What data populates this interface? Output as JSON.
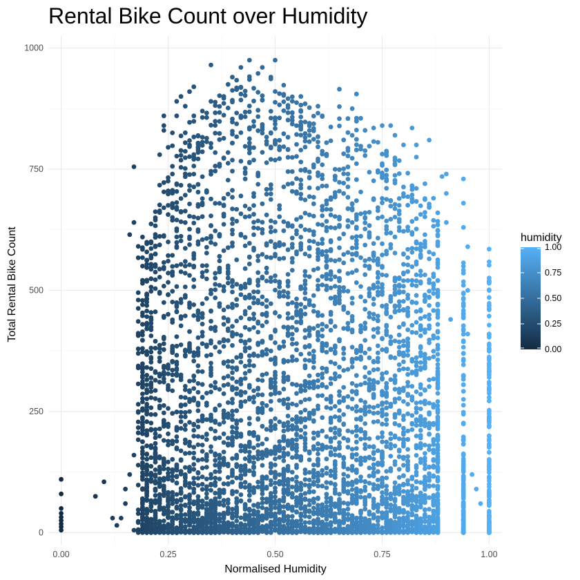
{
  "chart_data": {
    "type": "scatter",
    "title": "Rental Bike Count over Humidity",
    "xlabel": "Normalised Humidity",
    "ylabel": "Total Rental Bike Count",
    "xlim": [
      -0.03,
      1.03
    ],
    "ylim": [
      -25,
      1025
    ],
    "x_ticks": [
      0.0,
      0.25,
      0.5,
      0.75,
      1.0
    ],
    "x_tick_labels": [
      "0.00",
      "0.25",
      "0.50",
      "0.75",
      "1.00"
    ],
    "y_ticks": [
      0,
      250,
      500,
      750,
      1000
    ],
    "y_tick_labels": [
      "0",
      "250",
      "500",
      "750",
      "1000"
    ],
    "grid": true,
    "color_scale": {
      "variable": "humidity",
      "low_color": "#132b43",
      "high_color": "#56b1f7",
      "range": [
        0,
        1
      ],
      "ticks": [
        0.0,
        0.25,
        0.5,
        0.75,
        1.0
      ],
      "tick_labels": [
        "0.00",
        "0.25",
        "0.50",
        "0.75",
        "1.00"
      ],
      "legend_placement": "right"
    },
    "points": [
      [
        0.0,
        5
      ],
      [
        0.0,
        12
      ],
      [
        0.0,
        18
      ],
      [
        0.0,
        25
      ],
      [
        0.0,
        32
      ],
      [
        0.0,
        40
      ],
      [
        0.0,
        50
      ],
      [
        0.0,
        80
      ],
      [
        0.0,
        110
      ],
      [
        0.08,
        75
      ],
      [
        0.1,
        105
      ],
      [
        0.12,
        30
      ],
      [
        0.13,
        15
      ],
      [
        0.14,
        30
      ],
      [
        0.15,
        60
      ],
      [
        0.15,
        90
      ],
      [
        0.16,
        120
      ],
      [
        0.17,
        5
      ],
      [
        0.17,
        160
      ],
      [
        0.18,
        250
      ],
      [
        0.19,
        380
      ],
      [
        0.17,
        755
      ],
      [
        0.16,
        615
      ],
      [
        0.17,
        640
      ],
      [
        0.19,
        610
      ],
      [
        0.18,
        480
      ],
      [
        0.2,
        430
      ],
      [
        0.18,
        340
      ],
      [
        0.19,
        300
      ],
      [
        0.22,
        590
      ],
      [
        0.22,
        645
      ],
      [
        0.23,
        780
      ],
      [
        0.24,
        840
      ],
      [
        0.24,
        830
      ],
      [
        0.25,
        795
      ],
      [
        0.26,
        740
      ],
      [
        0.27,
        860
      ],
      [
        0.27,
        890
      ],
      [
        0.28,
        900
      ],
      [
        0.29,
        880
      ],
      [
        0.3,
        910
      ],
      [
        0.31,
        920
      ],
      [
        0.31,
        860
      ],
      [
        0.24,
        860
      ],
      [
        0.26,
        825
      ],
      [
        0.33,
        870
      ],
      [
        0.35,
        965
      ],
      [
        0.35,
        890
      ],
      [
        0.38,
        900
      ],
      [
        0.4,
        940
      ],
      [
        0.42,
        960
      ],
      [
        0.44,
        975
      ],
      [
        0.47,
        960
      ],
      [
        0.49,
        940
      ],
      [
        0.5,
        975
      ],
      [
        0.42,
        905
      ],
      [
        0.44,
        935
      ],
      [
        0.56,
        900
      ],
      [
        0.57,
        885
      ],
      [
        0.6,
        880
      ],
      [
        0.61,
        860
      ],
      [
        0.65,
        915
      ],
      [
        0.69,
        905
      ],
      [
        0.68,
        875
      ],
      [
        0.7,
        855
      ],
      [
        0.73,
        835
      ],
      [
        0.75,
        840
      ],
      [
        0.77,
        840
      ],
      [
        0.78,
        820
      ],
      [
        0.8,
        800
      ],
      [
        0.82,
        835
      ],
      [
        0.83,
        800
      ],
      [
        0.83,
        775
      ],
      [
        0.86,
        810
      ],
      [
        0.85,
        720
      ],
      [
        0.87,
        690
      ],
      [
        0.89,
        735
      ],
      [
        0.88,
        660
      ],
      [
        0.9,
        740
      ],
      [
        0.9,
        700
      ],
      [
        0.9,
        640
      ],
      [
        0.88,
        520
      ],
      [
        0.91,
        440
      ],
      [
        0.94,
        730
      ],
      [
        0.94,
        680
      ],
      [
        0.94,
        630
      ],
      [
        0.95,
        590
      ],
      [
        0.95,
        500
      ],
      [
        0.94,
        450
      ],
      [
        0.95,
        410
      ],
      [
        0.96,
        120
      ],
      [
        0.97,
        90
      ],
      [
        0.98,
        60
      ],
      [
        1.0,
        585
      ],
      [
        1.0,
        520
      ],
      [
        1.0,
        460
      ],
      [
        1.0,
        410
      ],
      [
        1.0,
        360
      ],
      [
        1.0,
        300
      ],
      [
        1.0,
        250
      ],
      [
        1.0,
        200
      ],
      [
        1.0,
        150
      ],
      [
        1.0,
        100
      ],
      [
        1.0,
        60
      ],
      [
        1.0,
        20
      ]
    ],
    "upper_envelope": [
      [
        0.17,
        600
      ],
      [
        0.2,
        600
      ],
      [
        0.23,
        720
      ],
      [
        0.26,
        800
      ],
      [
        0.3,
        850
      ],
      [
        0.34,
        880
      ],
      [
        0.38,
        920
      ],
      [
        0.42,
        940
      ],
      [
        0.46,
        950
      ],
      [
        0.5,
        940
      ],
      [
        0.55,
        900
      ],
      [
        0.6,
        870
      ],
      [
        0.65,
        880
      ],
      [
        0.7,
        850
      ],
      [
        0.75,
        800
      ],
      [
        0.8,
        760
      ],
      [
        0.84,
        720
      ],
      [
        0.87,
        680
      ],
      [
        0.89,
        620
      ],
      [
        0.92,
        560
      ],
      [
        0.95,
        560
      ],
      [
        0.97,
        520
      ],
      [
        1.0,
        560
      ]
    ],
    "notes": "Dense cloud of hourly records; points colored by humidity on a continuous scale."
  }
}
